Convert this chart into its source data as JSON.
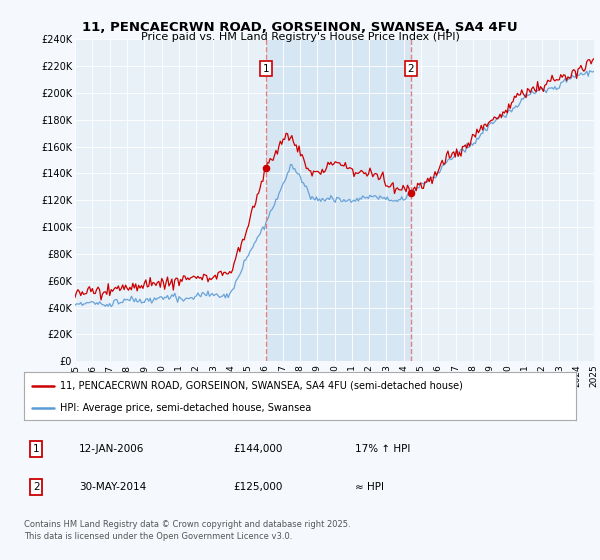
{
  "title": "11, PENCAECRWN ROAD, GORSEINON, SWANSEA, SA4 4FU",
  "subtitle": "Price paid vs. HM Land Registry's House Price Index (HPI)",
  "ylabel_ticks": [
    0,
    20000,
    40000,
    60000,
    80000,
    100000,
    120000,
    140000,
    160000,
    180000,
    200000,
    220000,
    240000
  ],
  "ylabel_labels": [
    "£0",
    "£20K",
    "£40K",
    "£60K",
    "£80K",
    "£100K",
    "£120K",
    "£140K",
    "£160K",
    "£180K",
    "£200K",
    "£220K",
    "£240K"
  ],
  "x_start_year": 1995,
  "x_end_year": 2025,
  "marker1_year": 2006.04,
  "marker2_year": 2014.41,
  "marker1_price": 144000,
  "marker2_price": 125000,
  "red_line_color": "#cc0000",
  "blue_line_color": "#5b9bd5",
  "vline_color": "#e08080",
  "shade_color": "#c8ddf0",
  "bg_color": "#f5f8fc",
  "plot_bg": "#e8f0f8",
  "grid_color": "#ffffff",
  "legend_label_red": "11, PENCAECRWN ROAD, GORSEINON, SWANSEA, SA4 4FU (semi-detached house)",
  "legend_label_blue": "HPI: Average price, semi-detached house, Swansea",
  "footer": "Contains HM Land Registry data © Crown copyright and database right 2025.\nThis data is licensed under the Open Government Licence v3.0.",
  "table_rows": [
    {
      "num": "1",
      "date": "12-JAN-2006",
      "price": "£144,000",
      "note": "17% ↑ HPI"
    },
    {
      "num": "2",
      "date": "30-MAY-2014",
      "price": "£125,000",
      "note": "≈ HPI"
    }
  ]
}
